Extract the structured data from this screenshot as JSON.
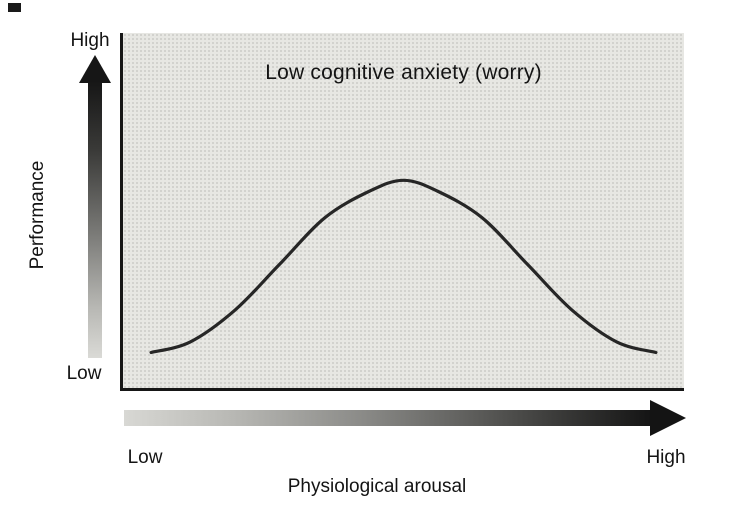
{
  "figure": {
    "description": "Inverted-U curve of performance versus physiological arousal under low cognitive anxiety"
  },
  "icons": {
    "up-arrow-icon": "css-triangle-up with light-to-dark vertical gradient shaft",
    "right-arrow-icon": "css-triangle-right with light-to-dark horizontal gradient shaft"
  },
  "colors": {
    "curve": "#262626",
    "plot_background": "#e7e7e3",
    "axis_line": "#161616",
    "arrow_dark": "#141414"
  },
  "chart_data": {
    "type": "line",
    "title": "Low cognitive anxiety (worry)",
    "xlabel": "Physiological arousal",
    "ylabel": "Performance",
    "x_tick_labels": [
      "Low",
      "High"
    ],
    "y_tick_labels": [
      "Low",
      "High"
    ],
    "xlim": [
      0,
      1
    ],
    "ylim": [
      0,
      1
    ],
    "grid": false,
    "legend": false,
    "series": [
      {
        "name": "Performance (inverted-U)",
        "x": [
          0.05,
          0.12,
          0.2,
          0.28,
          0.36,
          0.44,
          0.5,
          0.56,
          0.64,
          0.72,
          0.8,
          0.88,
          0.95
        ],
        "y": [
          0.1,
          0.13,
          0.22,
          0.35,
          0.48,
          0.555,
          0.585,
          0.555,
          0.48,
          0.35,
          0.22,
          0.13,
          0.1
        ]
      }
    ]
  }
}
